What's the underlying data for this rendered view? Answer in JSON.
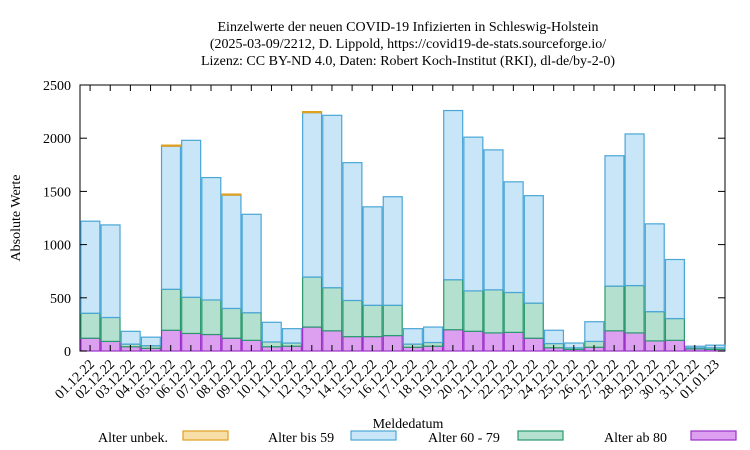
{
  "chart_data": {
    "type": "bar",
    "stacked": true,
    "title": [
      "Einzelwerte der neuen COVID-19 Infizierten in Schleswig-Holstein",
      "(2025-03-09/2212, D. Lippold, https://covid19-de-stats.sourceforge.io/",
      "Lizenz: CC BY-ND 4.0, Daten: Robert Koch-Institut (RKI), dl-de/by-2-0)"
    ],
    "xlabel": "Meldedatum",
    "ylabel": "Absolute Werte",
    "ylim": [
      0,
      2500
    ],
    "yticks": [
      0,
      500,
      1000,
      1500,
      2000,
      2500
    ],
    "legend_position": "bottom",
    "categories": [
      "01.12.22",
      "02.12.22",
      "03.12.22",
      "04.12.22",
      "05.12.22",
      "06.12.22",
      "07.12.22",
      "08.12.22",
      "09.12.22",
      "10.12.22",
      "11.12.22",
      "12.12.22",
      "13.12.22",
      "14.12.22",
      "15.12.22",
      "16.12.22",
      "17.12.22",
      "18.12.22",
      "19.12.22",
      "20.12.22",
      "21.12.22",
      "22.12.22",
      "23.12.22",
      "24.12.22",
      "25.12.22",
      "26.12.22",
      "27.12.22",
      "28.12.22",
      "29.12.22",
      "30.12.22",
      "31.12.22",
      "01.01.23"
    ],
    "series": [
      {
        "name": "Alter ab 80",
        "color": "#dda0f0",
        "edge": "#9b30c8",
        "values": [
          120,
          90,
          40,
          25,
          195,
          165,
          155,
          120,
          100,
          40,
          45,
          225,
          190,
          135,
          135,
          145,
          35,
          45,
          200,
          185,
          170,
          175,
          120,
          30,
          15,
          35,
          190,
          170,
          95,
          100,
          20,
          15
        ]
      },
      {
        "name": "Alter 60 - 79",
        "color": "#b3e0cf",
        "edge": "#2a9a6e",
        "values": [
          235,
          225,
          25,
          25,
          385,
          340,
          325,
          280,
          260,
          45,
          30,
          470,
          405,
          340,
          295,
          285,
          30,
          35,
          470,
          380,
          405,
          375,
          330,
          40,
          15,
          55,
          420,
          445,
          275,
          205,
          10,
          15
        ]
      },
      {
        "name": "Alter bis 59",
        "color": "#c8e6f8",
        "edge": "#4aa6d6",
        "values": [
          865,
          870,
          120,
          80,
          1345,
          1475,
          1150,
          1065,
          925,
          185,
          135,
          1545,
          1620,
          1295,
          925,
          1020,
          145,
          145,
          1590,
          1445,
          1315,
          1040,
          1010,
          125,
          45,
          185,
          1225,
          1425,
          825,
          555,
          15,
          25
        ]
      },
      {
        "name": "Alter unbek.",
        "color": "#f8dfa8",
        "edge": "#e0a020",
        "values": [
          0,
          0,
          0,
          0,
          10,
          0,
          0,
          10,
          0,
          0,
          0,
          10,
          0,
          0,
          0,
          0,
          0,
          0,
          0,
          0,
          0,
          0,
          0,
          0,
          0,
          0,
          0,
          0,
          0,
          0,
          0,
          0
        ]
      }
    ]
  }
}
